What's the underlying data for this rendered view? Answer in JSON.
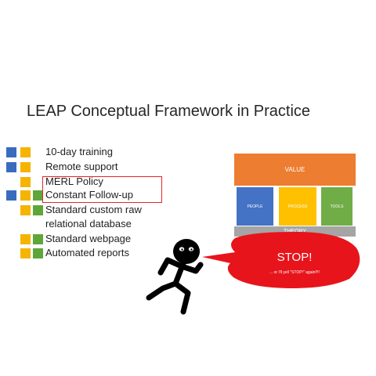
{
  "title": "LEAP Conceptual Framework in Practice",
  "list": [
    {
      "label": "10-day training"
    },
    {
      "label": "Remote support"
    },
    {
      "label": "MERL Policy"
    },
    {
      "label": "Constant Follow-up"
    },
    {
      "label": "Standard custom raw"
    },
    {
      "label": "relational database"
    },
    {
      "label": "Standard webpage"
    },
    {
      "label": "Automated reports"
    }
  ],
  "colors": {
    "blue": "#3a6bbf",
    "yellow": "#f4b400",
    "green": "#5ea63a",
    "red": "#e0262d"
  },
  "framework": {
    "value": "VALUE",
    "pillars": [
      "PEOPLE",
      "PROCESS",
      "TOOLS"
    ],
    "theory": "THEORY"
  },
  "speech": {
    "main": "STOP!",
    "sub": "... or I'll yell \"STOP!\" again!!!!"
  }
}
